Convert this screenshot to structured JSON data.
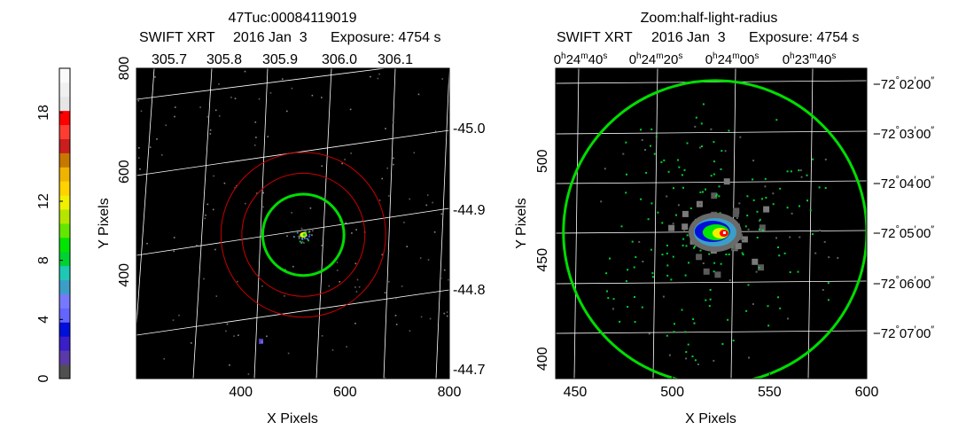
{
  "chart_data": [
    {
      "type": "heatmap",
      "title": "47Tuc:00084119019",
      "subtitle": [
        "SWIFT XRT",
        "2016 Jan  3",
        "Exposure: 4754 s"
      ],
      "xlabel": "X Pixels",
      "ylabel": "Y Pixels",
      "xlim": [
        200,
        800
      ],
      "ylim": [
        200,
        800
      ],
      "x_ticks": [
        "400",
        "600",
        "800"
      ],
      "y_ticks": [
        "400",
        "600",
        "800"
      ],
      "top_ticks": [
        "305.7",
        "305.8",
        "305.9",
        "306.0",
        "306.1"
      ],
      "right_ticks": [
        "-45.0",
        "-44.9",
        "-44.8",
        "-44.7"
      ],
      "source_center": [
        520,
        478
      ],
      "green_circle_radius": 78,
      "red_circle_radii": [
        118,
        158
      ],
      "image_background": "#000000",
      "grid_color": "#ffffff",
      "circle_colors": {
        "green": "#00dd00",
        "red": "#cc0000"
      }
    },
    {
      "type": "heatmap",
      "title": "Zoom:half-light-radius",
      "subtitle": [
        "SWIFT XRT",
        "2016 Jan  3",
        "Exposure: 4754 s"
      ],
      "xlabel": "X Pixels",
      "ylabel": "Y Pixels",
      "xlim": [
        440,
        600
      ],
      "ylim": [
        390,
        547
      ],
      "x_ticks": [
        "450",
        "500",
        "550",
        "600"
      ],
      "y_ticks": [
        "400",
        "450",
        "500"
      ],
      "top_ticks": [
        {
          "h": "0",
          "m": "24",
          "s": "40"
        },
        {
          "h": "0",
          "m": "24",
          "s": "20"
        },
        {
          "h": "0",
          "m": "24",
          "s": "00"
        },
        {
          "h": "0",
          "m": "23",
          "s": "40"
        }
      ],
      "right_ticks": [
        {
          "deg": "−72",
          "min": "02",
          "sec": "00"
        },
        {
          "deg": "−72",
          "min": "03",
          "sec": "00"
        },
        {
          "deg": "−72",
          "min": "04",
          "sec": "00"
        },
        {
          "deg": "−72",
          "min": "05",
          "sec": "00"
        },
        {
          "deg": "−72",
          "min": "06",
          "sec": "00"
        },
        {
          "deg": "−72",
          "min": "07",
          "sec": "00"
        }
      ],
      "source_center": [
        522,
        464
      ],
      "green_circle_radius": 78,
      "image_background": "#000000"
    }
  ],
  "colorbar": {
    "tick_labels": [
      "0",
      "4",
      "8",
      "12",
      "18"
    ],
    "colors": [
      "#505050",
      "#5a3aa8",
      "#3a1ec8",
      "#0010d8",
      "#6464ff",
      "#7878ff",
      "#3c9ec8",
      "#1ec8b4",
      "#00d232",
      "#00e600",
      "#64e600",
      "#b4e600",
      "#f0f000",
      "#ffd200",
      "#f0b400",
      "#c87800",
      "#c81e1e",
      "#ff3c32",
      "#ff0000",
      "#e6e6e6",
      "#f0f0f0",
      "#fafafa"
    ]
  }
}
